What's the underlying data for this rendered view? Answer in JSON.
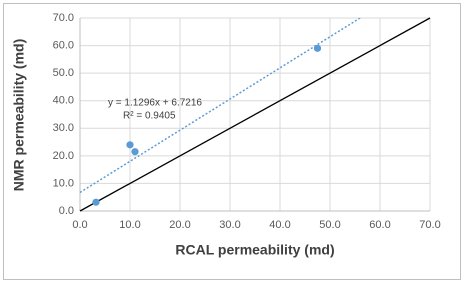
{
  "chart_data": {
    "type": "scatter",
    "x": [
      3.2,
      10.0,
      11.0,
      47.5
    ],
    "values": [
      3.2,
      24.0,
      21.5,
      59.0
    ],
    "color": "#5b9bd5",
    "xlabel": "RCAL permeability (md)",
    "ylabel": "NMR permeability (md)",
    "xlim": [
      0,
      70
    ],
    "ylim": [
      0,
      70
    ],
    "xticks": [
      {
        "value": 0,
        "label": "0.0"
      },
      {
        "value": 10,
        "label": "10.0"
      },
      {
        "value": 20,
        "label": "20.0"
      },
      {
        "value": 30,
        "label": "30.0"
      },
      {
        "value": 40,
        "label": "40.0"
      },
      {
        "value": 50,
        "label": "50.0"
      },
      {
        "value": 60,
        "label": "60.0"
      },
      {
        "value": 70,
        "label": "70.0"
      }
    ],
    "yticks": [
      {
        "value": 0,
        "label": "0.0"
      },
      {
        "value": 10,
        "label": "10.0"
      },
      {
        "value": 20,
        "label": "20.0"
      },
      {
        "value": 30,
        "label": "30.0"
      },
      {
        "value": 40,
        "label": "40.0"
      },
      {
        "value": 50,
        "label": "50.0"
      },
      {
        "value": 60,
        "label": "60.0"
      },
      {
        "value": 70,
        "label": "70.0"
      }
    ],
    "grid": true,
    "identity_line": true,
    "trendline": {
      "slope": 1.1296,
      "intercept": 6.7216,
      "label": "y = 1.1296x + 6.7216",
      "r2_label": "R² = 0.9405"
    }
  }
}
